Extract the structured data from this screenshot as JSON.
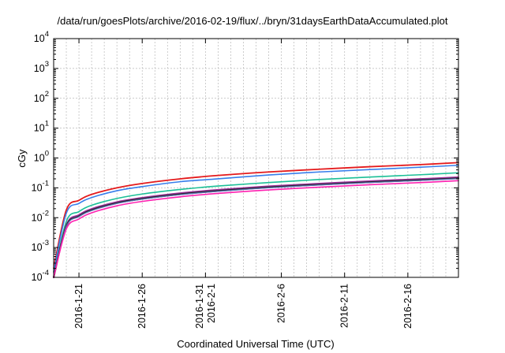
{
  "chart_data": {
    "type": "line",
    "title": "/data/run/goesPlots/archive/2016-02-19/flux/../bryn/31daysEarthDataAccumulated.plot",
    "xlabel": "Coordinated Universal Time (UTC)",
    "ylabel": "cGy",
    "yscale": "log",
    "ylim": [
      0.0001,
      10000
    ],
    "xlim": [
      "2016-01-19",
      "2016-02-20"
    ],
    "grid": true,
    "legend": "none",
    "x_ticks": [
      {
        "date": "2016-01-21",
        "lines": [
          "2016-1-21"
        ]
      },
      {
        "date": "2016-01-26",
        "lines": [
          "2016-1-26"
        ]
      },
      {
        "date": "2016-01-31",
        "lines": [
          "2016-1-31",
          "2016-2-1"
        ]
      },
      {
        "date": "2016-02-06",
        "lines": [
          "2016-2-6"
        ]
      },
      {
        "date": "2016-02-11",
        "lines": [
          "2016-2-11"
        ]
      },
      {
        "date": "2016-02-16",
        "lines": [
          "2016-2-16"
        ]
      }
    ],
    "y_ticks": [
      {
        "value": 0.0001,
        "base": "10",
        "exp": "-4"
      },
      {
        "value": 0.001,
        "base": "10",
        "exp": "-3"
      },
      {
        "value": 0.01,
        "base": "10",
        "exp": "-2"
      },
      {
        "value": 0.1,
        "base": "10",
        "exp": "-1"
      },
      {
        "value": 1,
        "base": "10",
        "exp": "0"
      },
      {
        "value": 10,
        "base": "10",
        "exp": "1"
      },
      {
        "value": 100,
        "base": "10",
        "exp": "2"
      },
      {
        "value": 1000,
        "base": "10",
        "exp": "3"
      },
      {
        "value": 10000,
        "base": "10",
        "exp": "4"
      }
    ],
    "x": [
      "2016-01-19",
      "2016-01-20",
      "2016-01-21",
      "2016-01-22",
      "2016-01-24",
      "2016-01-26",
      "2016-01-29",
      "2016-02-01",
      "2016-02-05",
      "2016-02-09",
      "2016-02-13",
      "2016-02-17",
      "2016-02-20"
    ],
    "series": [
      {
        "color": "#e41a1c",
        "width": 1.8,
        "values": [
          0.0002,
          0.018,
          0.038,
          0.06,
          0.1,
          0.14,
          0.2,
          0.26,
          0.34,
          0.42,
          0.51,
          0.6,
          0.7
        ]
      },
      {
        "color": "#377eeb",
        "width": 1.6,
        "values": [
          0.00015,
          0.014,
          0.03,
          0.047,
          0.08,
          0.11,
          0.16,
          0.2,
          0.27,
          0.34,
          0.41,
          0.49,
          0.57
        ]
      },
      {
        "color": "#1bbf97",
        "width": 1.6,
        "values": [
          0.0001,
          0.0075,
          0.016,
          0.026,
          0.044,
          0.062,
          0.088,
          0.115,
          0.15,
          0.19,
          0.23,
          0.275,
          0.32
        ]
      },
      {
        "color": "#a32ea3",
        "width": 1.6,
        "values": [
          0.0001,
          0.0058,
          0.0125,
          0.02,
          0.034,
          0.047,
          0.067,
          0.087,
          0.114,
          0.14,
          0.17,
          0.2,
          0.23
        ]
      },
      {
        "color": "#2b2b2b",
        "width": 2.2,
        "values": [
          0.0001,
          0.0052,
          0.0112,
          0.018,
          0.031,
          0.043,
          0.061,
          0.079,
          0.104,
          0.128,
          0.155,
          0.182,
          0.21
        ]
      },
      {
        "color": "#5b6db8",
        "width": 1.2,
        "values": [
          0.0001,
          0.005,
          0.0108,
          0.0172,
          0.0298,
          0.0415,
          0.059,
          0.076,
          0.1,
          0.124,
          0.15,
          0.176,
          0.203
        ]
      },
      {
        "color": "#ff1fb0",
        "width": 1.6,
        "values": [
          0.0001,
          0.0042,
          0.009,
          0.0145,
          0.025,
          0.035,
          0.05,
          0.065,
          0.085,
          0.105,
          0.127,
          0.15,
          0.173
        ]
      }
    ]
  }
}
